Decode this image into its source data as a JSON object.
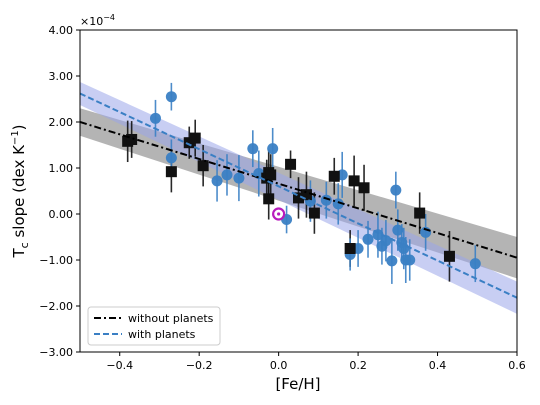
{
  "chart_data": {
    "type": "scatter",
    "xlabel": "[Fe/H]",
    "ylabel_main": "T",
    "ylabel_sub": "c",
    "ylabel_rest": " slope (dex K",
    "ylabel_sup": "−1",
    "ylabel_end": ")",
    "y_scale_note_base": "×10",
    "y_scale_note_exp": "−4",
    "xlim": [
      -0.5,
      0.6
    ],
    "ylim": [
      -3.0,
      4.0
    ],
    "x_ticks": [
      -0.4,
      -0.2,
      0.0,
      0.2,
      0.4,
      0.6
    ],
    "x_tick_labels": [
      "−0.4",
      "−0.2",
      "0.0",
      "0.2",
      "0.4",
      "0.6"
    ],
    "y_ticks": [
      -3.0,
      -2.0,
      -1.0,
      0.0,
      1.0,
      2.0,
      3.0,
      4.0
    ],
    "y_tick_labels": [
      "−3.00",
      "−2.00",
      "−1.00",
      "0.00",
      "1.00",
      "2.00",
      "3.00",
      "4.00"
    ],
    "grid": false,
    "legend_position": "bottom-left",
    "series": [
      {
        "name": "without planets",
        "marker": "square",
        "color": "#111111",
        "points": [
          {
            "x": -0.38,
            "y": 1.58,
            "err": 0.45
          },
          {
            "x": -0.37,
            "y": 1.62,
            "err": 0.4
          },
          {
            "x": -0.27,
            "y": 0.92,
            "err": 0.45
          },
          {
            "x": -0.225,
            "y": 1.55,
            "err": 0.35
          },
          {
            "x": -0.21,
            "y": 1.65,
            "err": 0.4
          },
          {
            "x": -0.19,
            "y": 1.05,
            "err": 0.45
          },
          {
            "x": -0.03,
            "y": 0.78,
            "err": 0.4
          },
          {
            "x": -0.025,
            "y": 0.9,
            "err": 0.5
          },
          {
            "x": -0.02,
            "y": 0.85,
            "err": 0.45
          },
          {
            "x": -0.025,
            "y": 0.33,
            "err": 0.45
          },
          {
            "x": 0.03,
            "y": 1.08,
            "err": 0.3
          },
          {
            "x": 0.05,
            "y": 0.35,
            "err": 0.45
          },
          {
            "x": 0.07,
            "y": 0.42,
            "err": 0.5
          },
          {
            "x": 0.09,
            "y": 0.02,
            "err": 0.45
          },
          {
            "x": 0.14,
            "y": 0.82,
            "err": 0.4
          },
          {
            "x": 0.18,
            "y": -0.75,
            "err": 0.4
          },
          {
            "x": 0.19,
            "y": 0.72,
            "err": 0.55
          },
          {
            "x": 0.215,
            "y": 0.57,
            "err": 0.5
          },
          {
            "x": 0.355,
            "y": 0.02,
            "err": 0.45
          },
          {
            "x": 0.43,
            "y": -0.92,
            "err": 0.55
          }
        ]
      },
      {
        "name": "with planets",
        "marker": "circle",
        "color": "#3a7fc4",
        "points": [
          {
            "x": -0.31,
            "y": 2.08,
            "err": 0.4
          },
          {
            "x": -0.27,
            "y": 2.55,
            "err": 0.3
          },
          {
            "x": -0.27,
            "y": 1.22,
            "err": 0.4
          },
          {
            "x": -0.155,
            "y": 0.72,
            "err": 0.45
          },
          {
            "x": -0.13,
            "y": 0.85,
            "err": 0.45
          },
          {
            "x": -0.1,
            "y": 0.78,
            "err": 0.5
          },
          {
            "x": -0.065,
            "y": 1.42,
            "err": 0.4
          },
          {
            "x": -0.05,
            "y": 0.88,
            "err": 0.5
          },
          {
            "x": -0.015,
            "y": 1.42,
            "err": 0.45
          },
          {
            "x": 0.02,
            "y": -0.12,
            "err": 0.3
          },
          {
            "x": 0.08,
            "y": 0.28,
            "err": 0.45
          },
          {
            "x": 0.12,
            "y": 0.3,
            "err": 0.4
          },
          {
            "x": 0.15,
            "y": 0.22,
            "err": 0.45
          },
          {
            "x": 0.16,
            "y": 0.85,
            "err": 0.5
          },
          {
            "x": 0.18,
            "y": -0.88,
            "err": 0.35
          },
          {
            "x": 0.2,
            "y": -0.75,
            "err": 0.4
          },
          {
            "x": 0.225,
            "y": -0.55,
            "err": 0.4
          },
          {
            "x": 0.25,
            "y": -0.45,
            "err": 0.5
          },
          {
            "x": 0.26,
            "y": -0.7,
            "err": 0.4
          },
          {
            "x": 0.27,
            "y": -0.58,
            "err": 0.45
          },
          {
            "x": 0.285,
            "y": -1.02,
            "err": 0.5
          },
          {
            "x": 0.295,
            "y": 0.52,
            "err": 0.4
          },
          {
            "x": 0.3,
            "y": -0.35,
            "err": 0.45
          },
          {
            "x": 0.31,
            "y": -0.62,
            "err": 0.4
          },
          {
            "x": 0.315,
            "y": -0.75,
            "err": 0.45
          },
          {
            "x": 0.32,
            "y": -1.0,
            "err": 0.5
          },
          {
            "x": 0.33,
            "y": -1.0,
            "err": 0.45
          },
          {
            "x": 0.37,
            "y": -0.4,
            "err": 0.4
          },
          {
            "x": 0.495,
            "y": -1.08,
            "err": 0.4
          }
        ]
      }
    ],
    "fits": [
      {
        "name": "without planets",
        "style": "dashdot",
        "color": "#000000",
        "band_color": "#777777",
        "x": [
          -0.5,
          0.6
        ],
        "y": [
          2.0,
          -0.95
        ],
        "band_halfwidth": [
          0.3,
          0.45
        ]
      },
      {
        "name": "with planets",
        "style": "dashed",
        "color": "#3a7fc4",
        "band_color": "#9aa6ea",
        "x": [
          -0.5,
          0.6
        ],
        "y": [
          2.62,
          -1.82
        ],
        "band_halfwidth": [
          0.25,
          0.35
        ]
      }
    ],
    "sun": {
      "x": 0.0,
      "y": 0.0,
      "color": "#b81cbd"
    }
  }
}
